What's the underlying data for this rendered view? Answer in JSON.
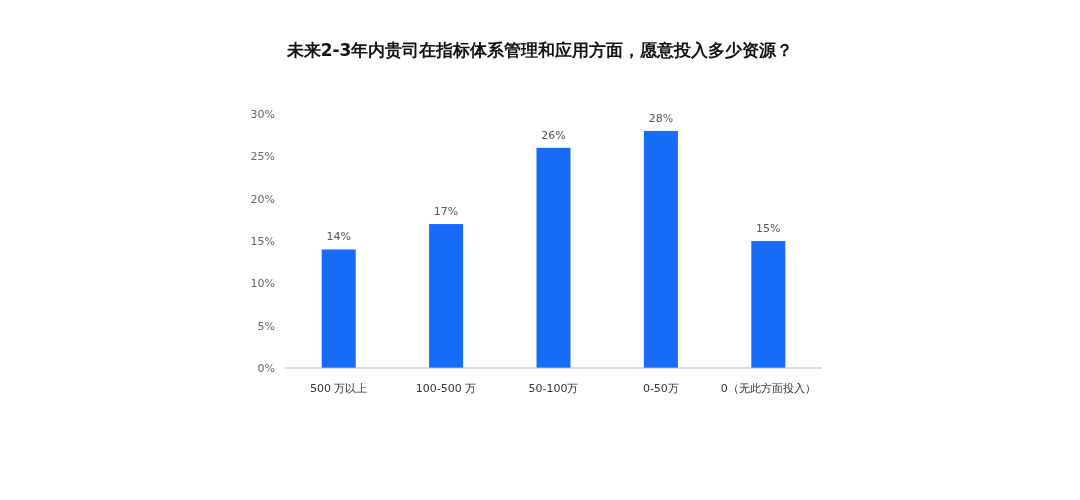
{
  "chart_data": {
    "type": "bar",
    "title": "未来2-3年内贵司在指标体系管理和应用方面，愿意投入多少资源？",
    "categories": [
      "500 万以上",
      "100-500 万",
      "50-100万",
      "0-50万",
      "0（无此方面投入）"
    ],
    "values": [
      14,
      17,
      26,
      28,
      15
    ],
    "value_labels": [
      "14%",
      "17%",
      "26%",
      "28%",
      "15%"
    ],
    "color": "#166cf7",
    "ylim": [
      0,
      30
    ],
    "yticks": [
      {
        "value": 0,
        "label": "0%"
      },
      {
        "value": 5,
        "label": "5%"
      },
      {
        "value": 10,
        "label": "10%"
      },
      {
        "value": 15,
        "label": "15%"
      },
      {
        "value": 20,
        "label": "20%"
      },
      {
        "value": 25,
        "label": "25%"
      },
      {
        "value": 30,
        "label": "30%"
      }
    ]
  }
}
